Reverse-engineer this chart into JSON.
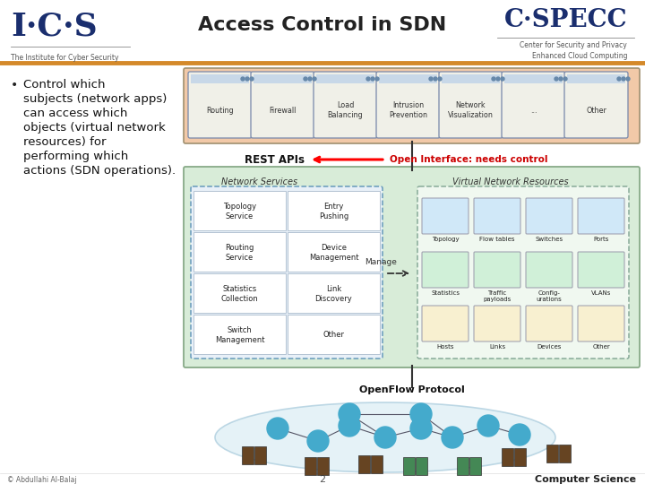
{
  "title": "Access Control in SDN",
  "title_fontsize": 16,
  "bg_color": "#ffffff",
  "header_line_color": "#D4892A",
  "bullet_lines": [
    "Control which",
    "subjects (network apps)",
    "can access which",
    "objects (virtual network",
    "resources) for",
    "performing which",
    "actions (SDN operations)."
  ],
  "bullet_fontsize": 9.5,
  "rest_apis_label": "REST APIs",
  "open_interface_label": "Open Interface: needs control",
  "open_interface_color": "#CC0000",
  "apps_bg_color": "#F2C9A8",
  "apps_border": "#A09070",
  "app_box_color": "#E8E8E0",
  "app_box_border": "#7788AA",
  "apps": [
    "Routing",
    "Firewall",
    "Load\nBalancing",
    "Intrusion\nPrevention",
    "Network\nVisualization",
    "...",
    "Other"
  ],
  "network_services_label": "Network Services",
  "virtual_resources_label": "Virtual Network Resources",
  "manage_label": "Manage",
  "openflow_label": "OpenFlow Protocol",
  "services": [
    [
      "Topology\nService",
      "Entry\nPushing"
    ],
    [
      "Routing\nService",
      "Device\nManagement"
    ],
    [
      "Statistics\nCollection",
      "Link\nDiscovery"
    ],
    [
      "Switch\nManagement",
      "Other"
    ]
  ],
  "vr_row1": [
    "Topology",
    "Flow tables",
    "Switches",
    "Ports"
  ],
  "vr_row2": [
    "Statistics",
    "Traffic\npayloads",
    "Config-\nurations",
    "VLANs"
  ],
  "vr_row3": [
    "Hosts",
    "Links",
    "Devices",
    "Other"
  ],
  "footer_left": "© Abdullahi Al-Balaj",
  "footer_right": "Computer Science",
  "footer_page": "2",
  "ics_color": "#1a2e6e",
  "cspecc_color": "#1a2e6e",
  "green_box_bg": "#d8ecd8",
  "green_box_border": "#88aa88",
  "dashed_box_bg": "#e8f0f8",
  "dashed_box_border": "#6699bb",
  "vr_box_bg": "#f0f8f0",
  "vr_box_border": "#88aa99"
}
